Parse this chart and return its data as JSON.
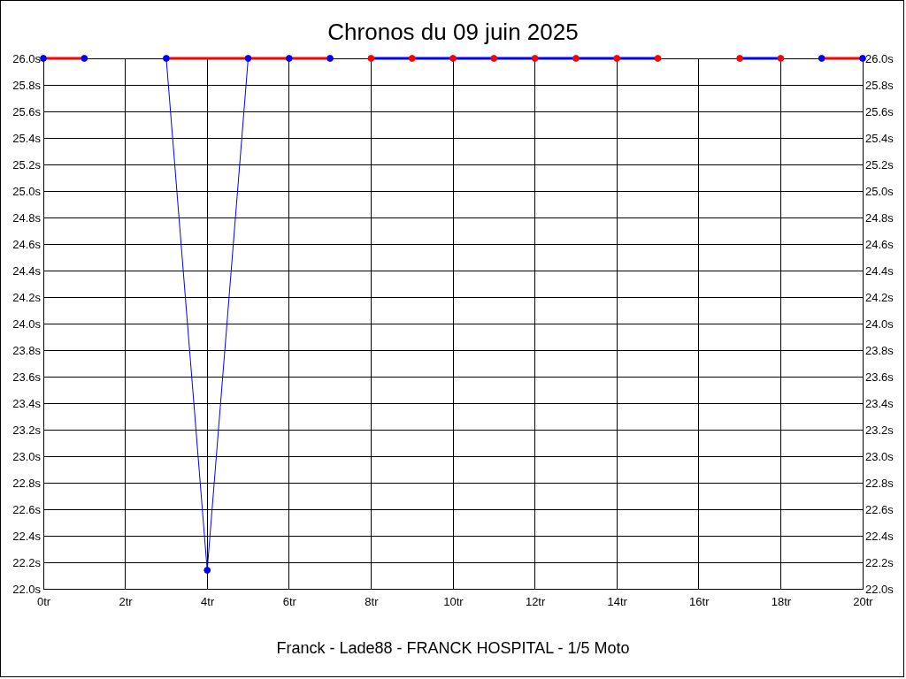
{
  "chart_data": {
    "type": "line",
    "title": "Chronos du 09 juin 2025",
    "xlabel": "Franck - Lade88 - FRANCK HOSPITAL - 1/5 Moto",
    "xlim": [
      0,
      20
    ],
    "xticks": [
      {
        "value": 0,
        "label": "0tr"
      },
      {
        "value": 2,
        "label": "2tr"
      },
      {
        "value": 4,
        "label": "4tr"
      },
      {
        "value": 6,
        "label": "6tr"
      },
      {
        "value": 8,
        "label": "8tr"
      },
      {
        "value": 10,
        "label": "10tr"
      },
      {
        "value": 12,
        "label": "12tr"
      },
      {
        "value": 14,
        "label": "14tr"
      },
      {
        "value": 16,
        "label": "16tr"
      },
      {
        "value": 18,
        "label": "18tr"
      },
      {
        "value": 20,
        "label": "20tr"
      }
    ],
    "ylim": [
      22,
      26
    ],
    "yticks": [
      {
        "value": 22,
        "label": "22.0s"
      },
      {
        "value": 22.2,
        "label": "22.2s"
      },
      {
        "value": 22.4,
        "label": "22.4s"
      },
      {
        "value": 22.6,
        "label": "22.6s"
      },
      {
        "value": 22.8,
        "label": "22.8s"
      },
      {
        "value": 23,
        "label": "23.0s"
      },
      {
        "value": 23.2,
        "label": "23.2s"
      },
      {
        "value": 23.4,
        "label": "23.4s"
      },
      {
        "value": 23.6,
        "label": "23.6s"
      },
      {
        "value": 23.8,
        "label": "23.8s"
      },
      {
        "value": 24,
        "label": "24.0s"
      },
      {
        "value": 24.2,
        "label": "24.2s"
      },
      {
        "value": 24.4,
        "label": "24.4s"
      },
      {
        "value": 24.6,
        "label": "24.6s"
      },
      {
        "value": 24.8,
        "label": "24.8s"
      },
      {
        "value": 25,
        "label": "25.0s"
      },
      {
        "value": 25.2,
        "label": "25.2s"
      },
      {
        "value": 25.4,
        "label": "25.4s"
      },
      {
        "value": 25.6,
        "label": "25.6s"
      },
      {
        "value": 25.8,
        "label": "25.8s"
      },
      {
        "value": 26,
        "label": "26.0s"
      }
    ],
    "y2lim": [
      22,
      26
    ],
    "y2ticks": [
      {
        "value": 22,
        "label": "22.0s"
      },
      {
        "value": 22.2,
        "label": "22.2s"
      },
      {
        "value": 22.4,
        "label": "22.4s"
      },
      {
        "value": 22.6,
        "label": "22.6s"
      },
      {
        "value": 22.8,
        "label": "22.8s"
      },
      {
        "value": 23,
        "label": "23.0s"
      },
      {
        "value": 23.2,
        "label": "23.2s"
      },
      {
        "value": 23.4,
        "label": "23.4s"
      },
      {
        "value": 23.6,
        "label": "23.6s"
      },
      {
        "value": 23.8,
        "label": "23.8s"
      },
      {
        "value": 24,
        "label": "24.0s"
      },
      {
        "value": 24.2,
        "label": "24.2s"
      },
      {
        "value": 24.4,
        "label": "24.4s"
      },
      {
        "value": 24.6,
        "label": "24.6s"
      },
      {
        "value": 24.8,
        "label": "24.8s"
      },
      {
        "value": 25,
        "label": "25.0s"
      },
      {
        "value": 25.2,
        "label": "25.2s"
      },
      {
        "value": 25.4,
        "label": "25.4s"
      },
      {
        "value": 25.6,
        "label": "25.6s"
      },
      {
        "value": 25.8,
        "label": "25.8s"
      },
      {
        "value": 26,
        "label": "26.0s"
      }
    ],
    "grid": true,
    "series": [
      {
        "color": "#0000ff",
        "marker": "none",
        "x": [
          3,
          4,
          5
        ],
        "values": [
          26,
          22.14,
          26
        ]
      },
      {
        "color": "#ff0000",
        "marker": "none",
        "x": [
          0,
          1
        ],
        "values": [
          26,
          26
        ]
      },
      {
        "color": "#ff0000",
        "marker": "none",
        "x": [
          3,
          5,
          6,
          7
        ],
        "values": [
          26,
          26,
          26,
          26
        ]
      },
      {
        "color": "#ff0000",
        "marker": "none",
        "x": [
          19,
          20
        ],
        "values": [
          26,
          26
        ]
      },
      {
        "color": "#0000ff",
        "marker": "none",
        "x": [
          8,
          9,
          10,
          11,
          12,
          13,
          14,
          15
        ],
        "values": [
          26,
          26,
          26,
          26,
          26,
          26,
          26,
          26
        ]
      },
      {
        "color": "#0000ff",
        "marker": "none",
        "x": [
          17,
          18
        ],
        "values": [
          26,
          26
        ]
      },
      {
        "type": "scatter",
        "color": "#0000ff",
        "marker": "circle",
        "x": [
          0,
          1,
          3,
          4,
          5,
          6,
          7,
          19,
          20
        ],
        "values": [
          26,
          26,
          26,
          22.14,
          26,
          26,
          26,
          26,
          26
        ]
      },
      {
        "type": "scatter",
        "color": "#ff0000",
        "marker": "circle",
        "x": [
          8,
          9,
          10,
          11,
          12,
          13,
          14,
          15,
          17,
          18
        ],
        "values": [
          26,
          26,
          26,
          26,
          26,
          26,
          26,
          26,
          26,
          26
        ]
      }
    ]
  }
}
